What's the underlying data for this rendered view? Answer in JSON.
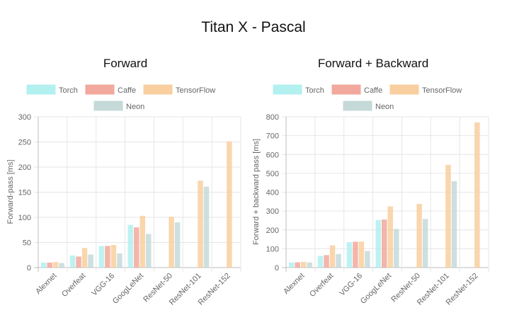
{
  "page": {
    "title": "Titan X - Pascal"
  },
  "chart_data": [
    {
      "type": "bar",
      "title": "Forward",
      "xlabel": "",
      "ylabel": "Forward-pass [ms]",
      "ylim": [
        0,
        300
      ],
      "yticks": [
        0,
        50,
        100,
        150,
        200,
        250,
        300
      ],
      "categories": [
        "Alexnet",
        "Overfeat",
        "VGG-16",
        "GoogLeNet",
        "ResNet-50",
        "ResNet-101",
        "ResNet-152"
      ],
      "grid": true,
      "legend_position": "top",
      "series": [
        {
          "name": "Torch",
          "color": "#b3f0f0",
          "values": [
            10,
            24,
            43,
            85,
            null,
            null,
            null
          ]
        },
        {
          "name": "Caffe",
          "color": "#f2a89c",
          "values": [
            10,
            22,
            43,
            80,
            null,
            null,
            null
          ]
        },
        {
          "name": "TensorFlow",
          "color": "#f9cf9f",
          "values": [
            11,
            39,
            45,
            103,
            101,
            173,
            251
          ]
        },
        {
          "name": "Neon",
          "color": "#c5d9d9",
          "values": [
            9,
            26,
            28,
            67,
            90,
            161,
            null
          ]
        }
      ]
    },
    {
      "type": "bar",
      "title": "Forward + Backward",
      "xlabel": "",
      "ylabel": "Forward + backward pass [ms]",
      "ylim": [
        0,
        800
      ],
      "yticks": [
        0,
        100,
        200,
        300,
        400,
        500,
        600,
        700,
        800
      ],
      "categories": [
        "Alexnet",
        "Overfeat",
        "VGG-16",
        "GoogLeNet",
        "ResNet-50",
        "ResNet-101",
        "ResNet-152"
      ],
      "grid": true,
      "legend_position": "top",
      "series": [
        {
          "name": "Torch",
          "color": "#b3f0f0",
          "values": [
            27,
            62,
            135,
            252,
            null,
            null,
            null
          ]
        },
        {
          "name": "Caffe",
          "color": "#f2a89c",
          "values": [
            28,
            66,
            137,
            255,
            null,
            null,
            null
          ]
        },
        {
          "name": "TensorFlow",
          "color": "#f9cf9f",
          "values": [
            30,
            118,
            138,
            325,
            338,
            545,
            770
          ]
        },
        {
          "name": "Neon",
          "color": "#c5d9d9",
          "values": [
            27,
            72,
            88,
            205,
            258,
            458,
            null
          ]
        }
      ]
    }
  ]
}
